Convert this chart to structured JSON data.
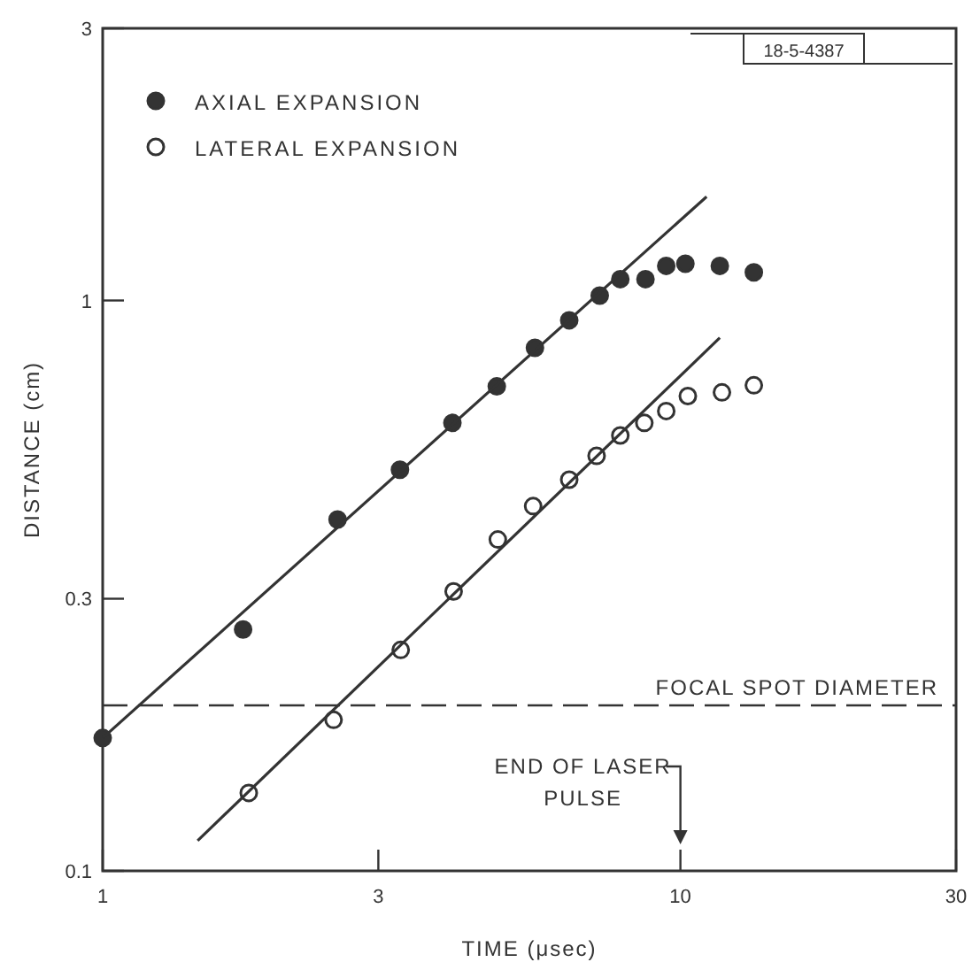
{
  "chart_data": {
    "type": "scatter",
    "xlabel": "TIME (μsec)",
    "ylabel": "DISTANCE (cm)",
    "log": "xy",
    "xlim": [
      1,
      30
    ],
    "ylim": [
      0.1,
      3
    ],
    "xticks": [
      1,
      3,
      10,
      30
    ],
    "yticks": [
      0.1,
      0.3,
      1,
      3
    ],
    "grid": false,
    "legend": "top left",
    "marker": "circle",
    "series": [
      {
        "name": "AXIAL EXPANSION",
        "color": "#333333",
        "x": [
          1,
          1.75,
          2.55,
          3.27,
          4.03,
          4.81,
          5.6,
          6.42,
          7.25,
          7.87,
          8.7,
          9.45,
          10.2,
          11.7,
          13.4
        ],
        "values": [
          0.171,
          0.265,
          0.413,
          0.505,
          0.61,
          0.707,
          0.826,
          0.923,
          1.02,
          1.09,
          1.09,
          1.15,
          1.16,
          1.15,
          1.12
        ]
      },
      {
        "name": "LATERAL EXPANSION",
        "color": "#333333",
        "x": [
          1.79,
          2.51,
          3.28,
          4.05,
          4.83,
          5.56,
          6.42,
          7.16,
          7.87,
          8.66,
          9.45,
          10.3,
          11.8,
          13.4
        ],
        "values": [
          0.137,
          0.184,
          0.244,
          0.309,
          0.381,
          0.436,
          0.485,
          0.534,
          0.58,
          0.61,
          0.64,
          0.68,
          0.69,
          0.71
        ]
      },
      {
        "type": "line",
        "marker": "none",
        "color": "#333333",
        "x": [
          1,
          11.1
        ],
        "values": [
          0.171,
          1.52
        ]
      },
      {
        "type": "line",
        "marker": "none",
        "color": "#333333",
        "x": [
          1.46,
          11.7
        ],
        "values": [
          0.113,
          0.86
        ]
      }
    ],
    "ref_lines": [
      {
        "axis": "y",
        "value": 0.195,
        "label": "FOCAL SPOT DIAMETER",
        "line_style": "dashed",
        "color": "#333333"
      }
    ],
    "annotations": [
      "END OF LASER PULSE",
      "18-5-4387"
    ]
  }
}
